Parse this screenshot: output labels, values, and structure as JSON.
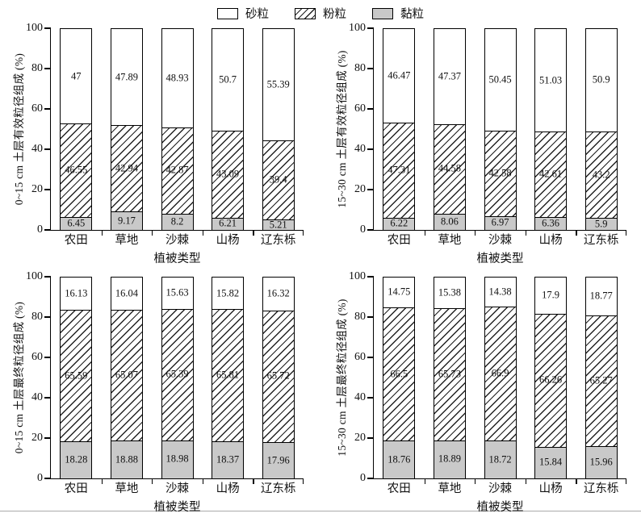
{
  "colors": {
    "sand_fill": "#ffffff",
    "clay_fill": "#c9c9c9",
    "hatch_line": "#222222",
    "axis": "#000000"
  },
  "legend": {
    "items": [
      {
        "label": "砂粒",
        "swatch": "sand"
      },
      {
        "label": "粉粒",
        "swatch": "silt"
      },
      {
        "label": "黏粒",
        "swatch": "clay"
      }
    ]
  },
  "chart_data": [
    {
      "type": "bar",
      "stacked": true,
      "position": "top-left",
      "ylabel": "0~15 cm 土层有效粒径组成 (%)",
      "xlabel": "植被类型",
      "ylim": [
        0,
        100
      ],
      "yticks": [
        0,
        20,
        40,
        60,
        80,
        100
      ],
      "grid": false,
      "legend_position": "top-center",
      "categories": [
        "农田",
        "草地",
        "沙棘",
        "山杨",
        "辽东栎"
      ],
      "series": [
        {
          "name": "黏粒",
          "key": "clay",
          "pattern": "gray",
          "values": [
            6.45,
            9.17,
            8.2,
            6.21,
            5.21
          ]
        },
        {
          "name": "粉粒",
          "key": "silt",
          "pattern": "hatch",
          "values": [
            46.55,
            42.94,
            42.87,
            43.09,
            39.4
          ]
        },
        {
          "name": "砂粒",
          "key": "sand",
          "pattern": "white",
          "values": [
            47,
            47.89,
            48.93,
            50.7,
            55.39
          ]
        }
      ]
    },
    {
      "type": "bar",
      "stacked": true,
      "position": "top-right",
      "ylabel": "15~30 cm 土层有效粒径组成 (%)",
      "xlabel": "植被类型",
      "ylim": [
        0,
        100
      ],
      "yticks": [
        0,
        20,
        40,
        60,
        80,
        100
      ],
      "grid": false,
      "categories": [
        "农田",
        "草地",
        "沙棘",
        "山杨",
        "辽东栎"
      ],
      "series": [
        {
          "name": "黏粒",
          "key": "clay",
          "pattern": "gray",
          "values": [
            6.22,
            8.06,
            6.97,
            6.36,
            5.9
          ]
        },
        {
          "name": "粉粒",
          "key": "silt",
          "pattern": "hatch",
          "values": [
            47.31,
            44.58,
            42.58,
            42.61,
            43.2
          ]
        },
        {
          "name": "砂粒",
          "key": "sand",
          "pattern": "white",
          "values": [
            46.47,
            47.37,
            50.45,
            51.03,
            50.9
          ]
        }
      ]
    },
    {
      "type": "bar",
      "stacked": true,
      "position": "bottom-left",
      "ylabel": "0~15 cm 土层最终粒径组成 (%)",
      "xlabel": "植被类型",
      "ylim": [
        0,
        100
      ],
      "yticks": [
        0,
        20,
        40,
        60,
        80,
        100
      ],
      "grid": false,
      "categories": [
        "农田",
        "草地",
        "沙棘",
        "山杨",
        "辽东栎"
      ],
      "series": [
        {
          "name": "黏粒",
          "key": "clay",
          "pattern": "gray",
          "values": [
            18.28,
            18.88,
            18.98,
            18.37,
            17.96
          ]
        },
        {
          "name": "粉粒",
          "key": "silt",
          "pattern": "hatch",
          "values": [
            65.59,
            65.07,
            65.39,
            65.81,
            65.72
          ]
        },
        {
          "name": "砂粒",
          "key": "sand",
          "pattern": "white",
          "values": [
            16.13,
            16.04,
            15.63,
            15.82,
            16.32
          ]
        }
      ]
    },
    {
      "type": "bar",
      "stacked": true,
      "position": "bottom-right",
      "ylabel": "15~30 cm 土层最终粒径组成 (%)",
      "xlabel": "植被类型",
      "ylim": [
        0,
        100
      ],
      "yticks": [
        0,
        20,
        40,
        60,
        80,
        100
      ],
      "grid": false,
      "categories": [
        "农田",
        "草地",
        "沙棘",
        "山杨",
        "辽东栎"
      ],
      "series": [
        {
          "name": "黏粒",
          "key": "clay",
          "pattern": "gray",
          "values": [
            18.76,
            18.89,
            18.72,
            15.84,
            15.96
          ]
        },
        {
          "name": "粉粒",
          "key": "silt",
          "pattern": "hatch",
          "values": [
            66.5,
            65.73,
            66.9,
            66.26,
            65.27
          ]
        },
        {
          "name": "砂粒",
          "key": "sand",
          "pattern": "white",
          "values": [
            14.75,
            15.38,
            14.38,
            17.9,
            18.77
          ]
        }
      ]
    }
  ]
}
